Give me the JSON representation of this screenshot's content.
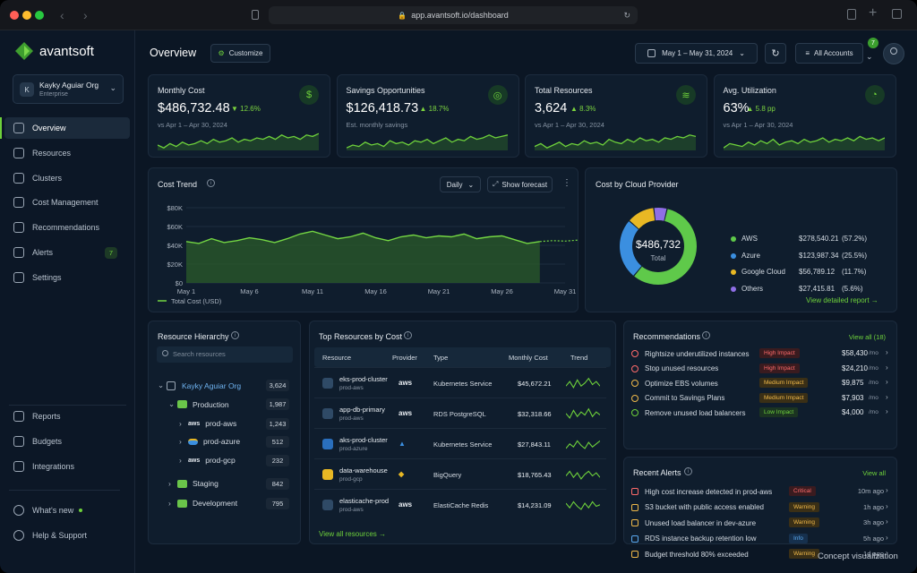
{
  "browser": {
    "url": "app.avantsoft.io/dashboard"
  },
  "brand": {
    "name": "avantsoft",
    "accent": "#6ed13b"
  },
  "org": {
    "name": "Kayky Aguiar Org",
    "plan": "Enterprise",
    "initial": "K"
  },
  "nav": {
    "items": [
      {
        "label": "Overview",
        "icon": "grid-icon",
        "active": true
      },
      {
        "label": "Resources",
        "icon": "box-icon"
      },
      {
        "label": "Clusters",
        "icon": "clusters-icon"
      },
      {
        "label": "Cost Management",
        "icon": "dollar-icon"
      },
      {
        "label": "Recommendations",
        "icon": "bulb-icon"
      },
      {
        "label": "Alerts",
        "icon": "bell-icon",
        "badge": "7"
      },
      {
        "label": "Settings",
        "icon": "gear-icon"
      }
    ],
    "bottom": [
      {
        "label": "Reports",
        "icon": "report-icon"
      },
      {
        "label": "Budgets",
        "icon": "budget-icon"
      },
      {
        "label": "Integrations",
        "icon": "integrations-icon"
      }
    ],
    "footer": [
      {
        "label": "What's new",
        "icon": "sparkle-icon"
      },
      {
        "label": "Help & Support",
        "icon": "help-icon"
      }
    ]
  },
  "header": {
    "title": "Overview",
    "customize": "Customize",
    "date_range": "May 1 – May 31, 2024",
    "accounts": "All Accounts",
    "notif_count": "7"
  },
  "kpis": [
    {
      "title": "Monthly Cost",
      "value": "$486,732.48",
      "delta": "▼ 12.6%",
      "sub": "vs Apr 1 – Apr 30, 2024",
      "icon": "dollar-icon",
      "glyph": "$"
    },
    {
      "title": "Savings Opportunities",
      "value": "$126,418.73",
      "delta": "▲ 18.7%",
      "sub": "Est. monthly savings",
      "icon": "target-icon",
      "glyph": "◎"
    },
    {
      "title": "Total Resources",
      "value": "3,624",
      "delta": "▲ 8.3%",
      "sub": "vs Apr 1 – Apr 30, 2024",
      "icon": "layers-icon",
      "glyph": "≋"
    },
    {
      "title": "Avg. Utilization",
      "value": "63%",
      "delta": "▲ 5.8 pp",
      "sub": "vs Apr 1 – Apr 30, 2024",
      "icon": "gauge-icon",
      "glyph": "◔"
    }
  ],
  "cost_trend": {
    "title": "Cost Trend",
    "granularity": "Daily",
    "forecast_label": "Show forecast",
    "legend": "Total Cost (USD)"
  },
  "chart_data": {
    "type": "area",
    "x": [
      "May 1",
      "May 2",
      "May 3",
      "May 4",
      "May 5",
      "May 6",
      "May 7",
      "May 8",
      "May 9",
      "May 10",
      "May 11",
      "May 12",
      "May 13",
      "May 14",
      "May 15",
      "May 16",
      "May 17",
      "May 18",
      "May 19",
      "May 20",
      "May 21",
      "May 22",
      "May 23",
      "May 24",
      "May 25",
      "May 26",
      "May 27",
      "May 28",
      "May 29",
      "May 30",
      "May 31"
    ],
    "x_tick_labels": [
      "May 1",
      "May 6",
      "May 11",
      "May 16",
      "May 21",
      "May 26",
      "May 31"
    ],
    "series": [
      {
        "name": "Total Cost (USD)",
        "values": [
          44000,
          42000,
          47000,
          43000,
          45000,
          48000,
          46000,
          43000,
          47000,
          52000,
          55000,
          51000,
          47000,
          49000,
          53000,
          48000,
          45000,
          49000,
          51000,
          48000,
          50000,
          49000,
          52000,
          47000,
          49000,
          50000,
          46000,
          42000,
          44000,
          null,
          null
        ]
      }
    ],
    "forecast": {
      "x_start": 28,
      "values": [
        44000,
        45000,
        44500,
        45500
      ]
    },
    "yticks": [
      "$80K",
      "$60K",
      "$40K",
      "$20K",
      "$0"
    ],
    "ylim": [
      0,
      80000
    ],
    "grid": true
  },
  "providers": {
    "title": "Cost by Cloud Provider",
    "total": "$486,732",
    "total_label": "Total",
    "items": [
      {
        "name": "AWS",
        "amount": "$278,540.21",
        "pct": "(57.2%)",
        "value": 57.2,
        "color": "#5fc94a"
      },
      {
        "name": "Azure",
        "amount": "$123,987.34",
        "pct": "(25.5%)",
        "value": 25.5,
        "color": "#3b8fe0"
      },
      {
        "name": "Google Cloud",
        "amount": "$56,789.12",
        "pct": "(11.7%)",
        "value": 11.7,
        "color": "#e8b824"
      },
      {
        "name": "Others",
        "amount": "$27,415.81",
        "pct": "(5.6%)",
        "value": 5.6,
        "color": "#8f6fe6"
      }
    ],
    "link": "View detailed report →"
  },
  "hierarchy": {
    "title": "Resource Hierarchy",
    "search_placeholder": "Search resources",
    "rows": [
      {
        "label": "Kayky Aguiar Org",
        "count": "3,624"
      },
      {
        "label": "Production",
        "count": "1,987"
      },
      {
        "label": "prod-aws",
        "count": "1,243"
      },
      {
        "label": "prod-azure",
        "count": "512"
      },
      {
        "label": "prod-gcp",
        "count": "232"
      },
      {
        "label": "Staging",
        "count": "842"
      },
      {
        "label": "Development",
        "count": "795"
      }
    ]
  },
  "top_resources": {
    "title": "Top Resources by Cost",
    "columns": [
      "Resource",
      "Provider",
      "Type",
      "Monthly Cost",
      "Trend"
    ],
    "rows": [
      {
        "name": "eks-prod-cluster",
        "env": "prod-aws",
        "provider": "aws",
        "type": "Kubernetes Service",
        "cost": "$45,672.21"
      },
      {
        "name": "app-db-primary",
        "env": "prod-aws",
        "provider": "aws",
        "type": "RDS PostgreSQL",
        "cost": "$32,318.66"
      },
      {
        "name": "aks-prod-cluster",
        "env": "prod-azure",
        "provider": "azure",
        "type": "Kubernetes Service",
        "cost": "$27,843.11"
      },
      {
        "name": "data-warehouse",
        "env": "prod-gcp",
        "provider": "gcp",
        "type": "BigQuery",
        "cost": "$18,765.43"
      },
      {
        "name": "elasticache-prod",
        "env": "prod-aws",
        "provider": "aws",
        "type": "ElastiCache Redis",
        "cost": "$14,231.09"
      }
    ],
    "link": "View all resources →"
  },
  "recommendations": {
    "title": "Recommendations",
    "link": "View all (18)",
    "rows": [
      {
        "text": "Rightsize underutilized instances",
        "impact": "High Impact",
        "level": "high",
        "amount": "$58,430",
        "unit": "/mo"
      },
      {
        "text": "Stop unused resources",
        "impact": "High Impact",
        "level": "high",
        "amount": "$24,210",
        "unit": "/mo"
      },
      {
        "text": "Optimize EBS volumes",
        "impact": "Medium Impact",
        "level": "med",
        "amount": "$9,875",
        "unit": "/mo"
      },
      {
        "text": "Commit to Savings Plans",
        "impact": "Medium Impact",
        "level": "med",
        "amount": "$7,903",
        "unit": "/mo"
      },
      {
        "text": "Remove unused load balancers",
        "impact": "Low Impact",
        "level": "low",
        "amount": "$4,000",
        "unit": "/mo"
      }
    ]
  },
  "alerts": {
    "title": "Recent Alerts",
    "link": "View all",
    "rows": [
      {
        "text": "High cost increase detected in prod-aws",
        "severity": "Critical",
        "level": "crit",
        "time": "10m ago"
      },
      {
        "text": "S3 bucket with public access enabled",
        "severity": "Warning",
        "level": "warn",
        "time": "1h ago"
      },
      {
        "text": "Unused load balancer in dev-azure",
        "severity": "Warning",
        "level": "warn",
        "time": "3h ago"
      },
      {
        "text": "RDS instance backup retention low",
        "severity": "Info",
        "level": "info",
        "time": "5h ago"
      },
      {
        "text": "Budget threshold 80% exceeded",
        "severity": "Warning",
        "level": "warn",
        "time": "1d ago"
      }
    ]
  },
  "footer_note": "Concept visualization"
}
